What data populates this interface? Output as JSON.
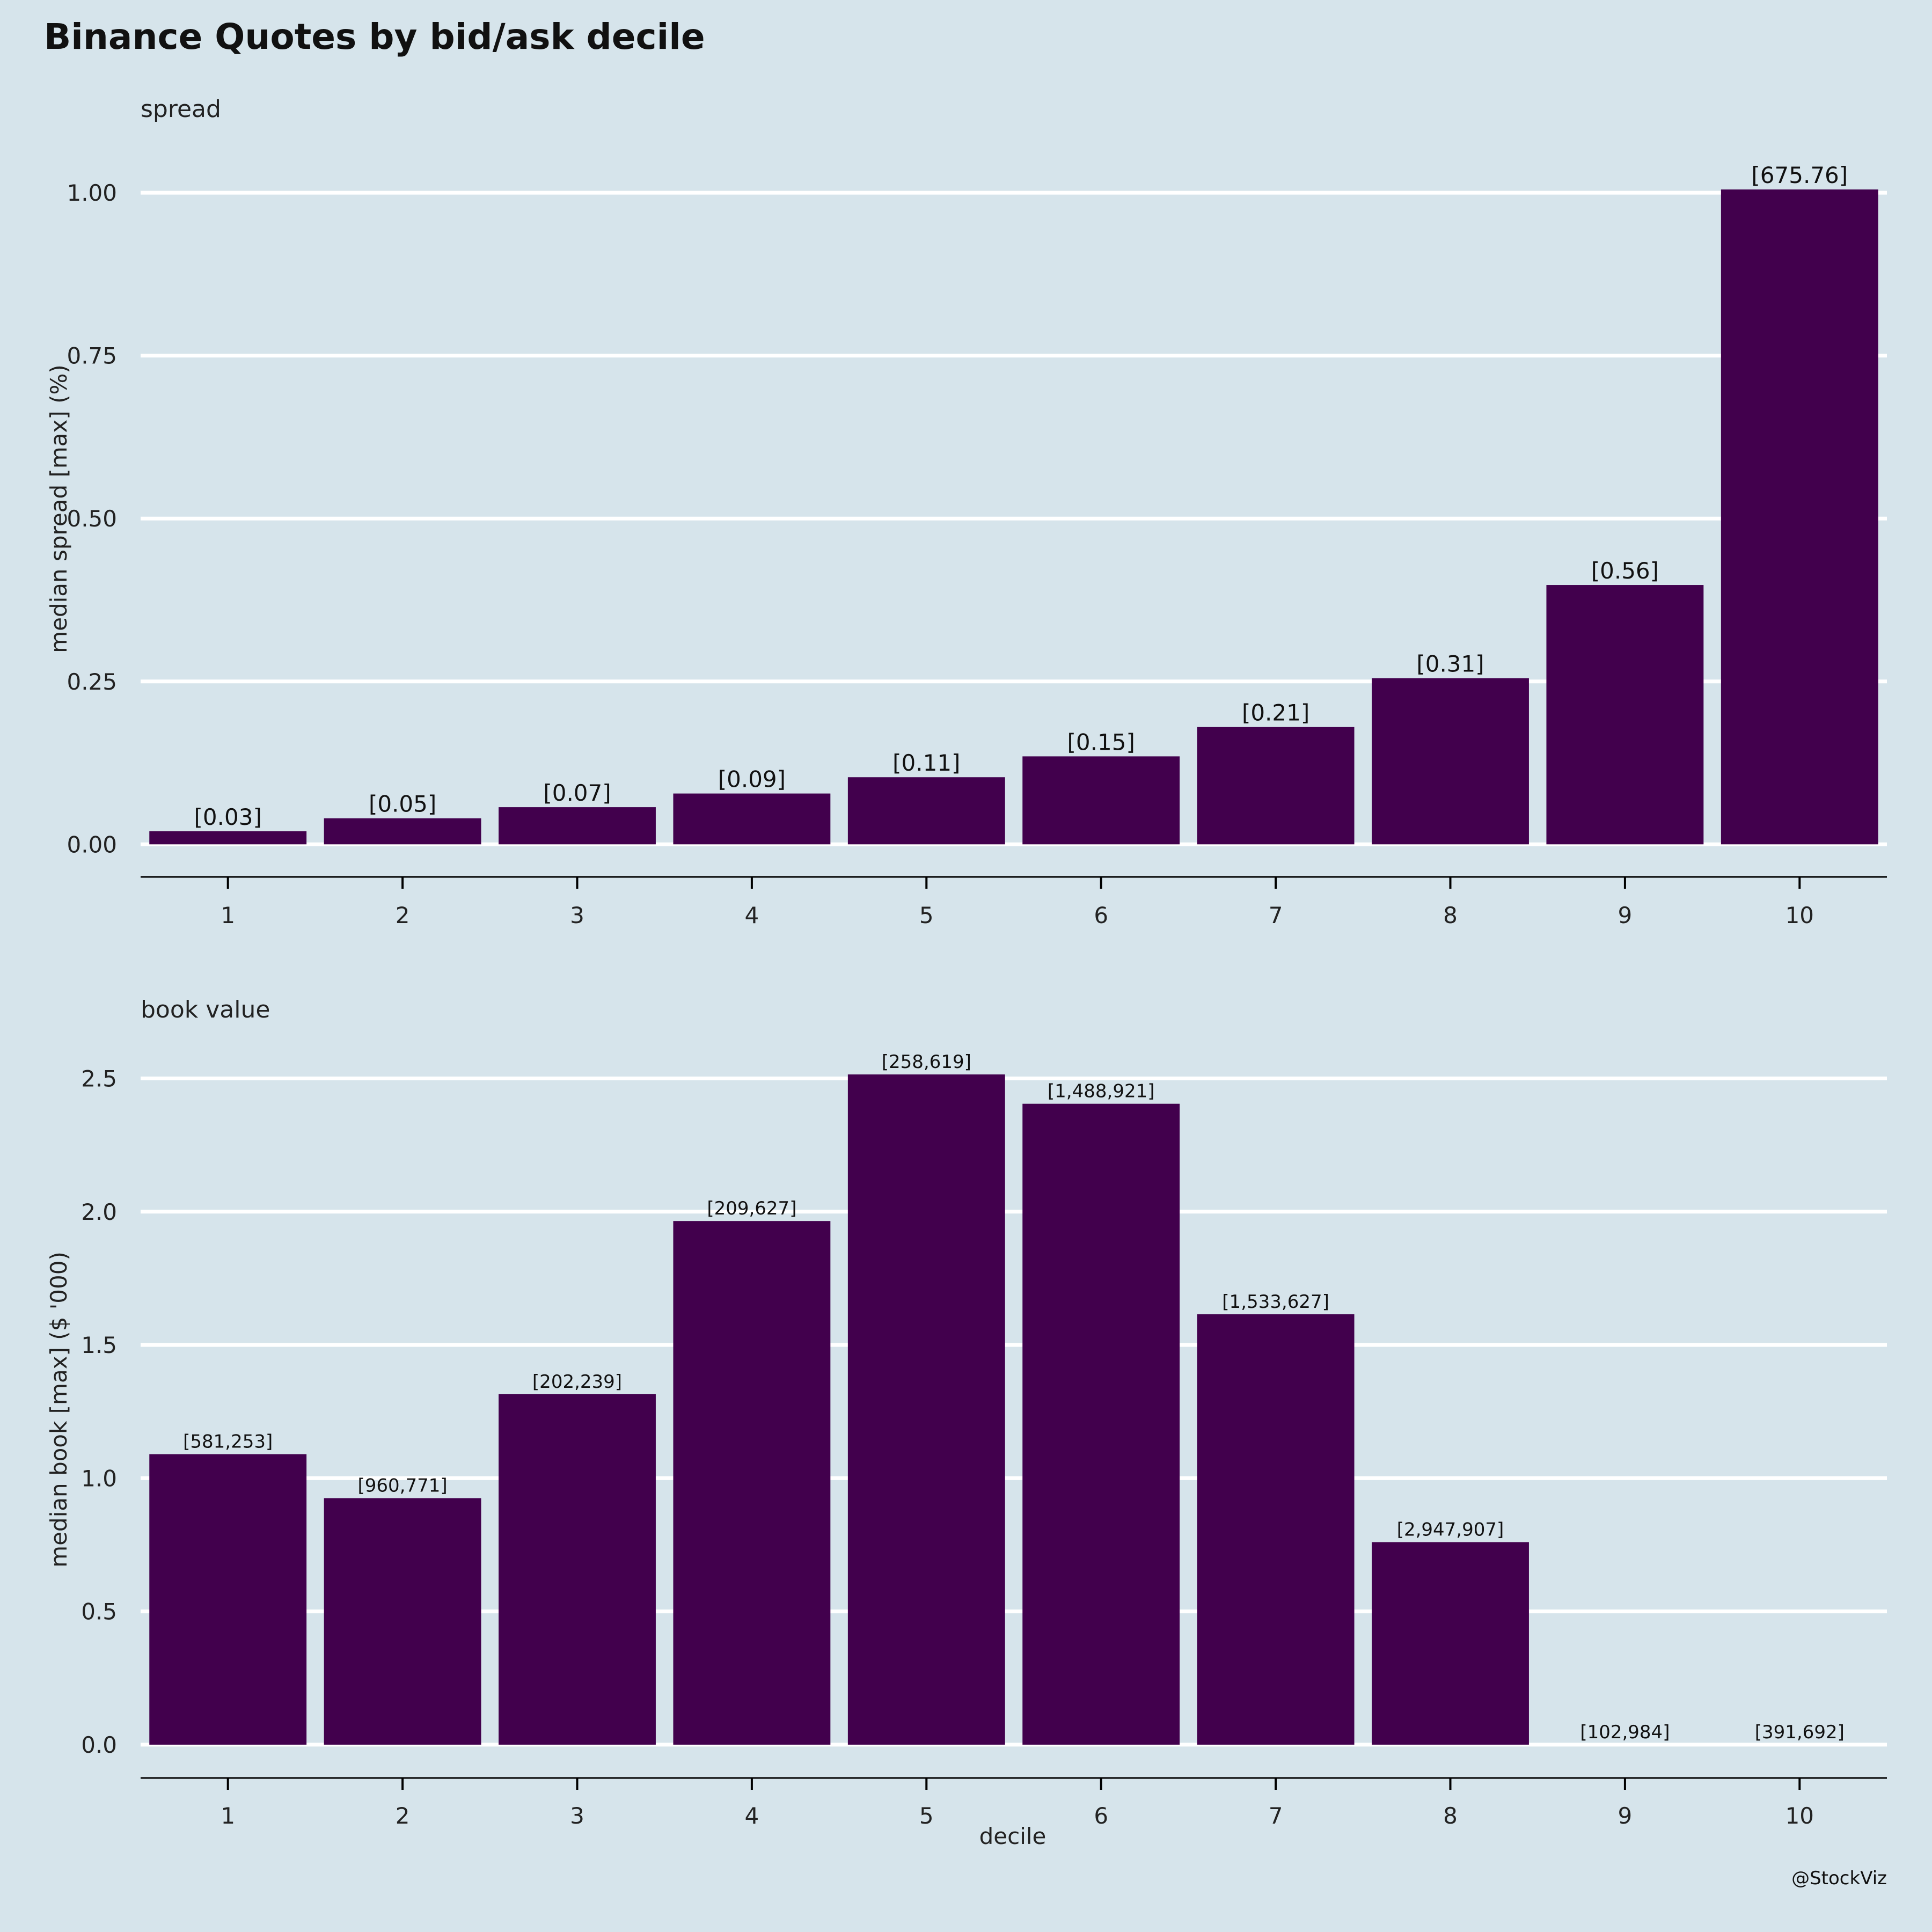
{
  "title": "Binance Quotes by bid/ask decile",
  "credit": "@StockViz",
  "colors": {
    "background": "#d6e4eb",
    "bar": "#42004d",
    "grid": "#ffffff",
    "axis": "#000000"
  },
  "chart_data": [
    {
      "type": "bar",
      "panel_title": "spread",
      "xlabel": "",
      "ylabel": "median spread [max] (%)",
      "categories": [
        "1",
        "2",
        "3",
        "4",
        "5",
        "6",
        "7",
        "8",
        "9",
        "10"
      ],
      "values": [
        0.02,
        0.04,
        0.057,
        0.078,
        0.103,
        0.135,
        0.18,
        0.255,
        0.398,
        1.005
      ],
      "labels": [
        "[0.03]",
        "[0.05]",
        "[0.07]",
        "[0.09]",
        "[0.11]",
        "[0.15]",
        "[0.21]",
        "[0.31]",
        "[0.56]",
        "[675.76]"
      ],
      "ylim": [
        -0.05,
        1.08
      ],
      "yticks": [
        0,
        0.25,
        0.5,
        0.75,
        1.0
      ],
      "ytick_labels": [
        "0.00",
        "0.25",
        "0.50",
        "0.75",
        "1.00"
      ],
      "grid": true
    },
    {
      "type": "bar",
      "panel_title": "book value",
      "xlabel": "decile",
      "ylabel": "median book [max] ($ '000)",
      "categories": [
        "1",
        "2",
        "3",
        "4",
        "5",
        "6",
        "7",
        "8",
        "9",
        "10"
      ],
      "values": [
        1.09,
        0.925,
        1.315,
        1.965,
        2.515,
        2.405,
        1.615,
        0.76,
        0,
        0
      ],
      "labels": [
        "[581,253]",
        "[960,771]",
        "[202,239]",
        "[209,627]",
        "[258,619]",
        "[1,488,921]",
        "[1,533,627]",
        "[2,947,907]",
        "[102,984]",
        "[391,692]"
      ],
      "ylim": [
        -0.125,
        2.64
      ],
      "yticks": [
        0,
        0.5,
        1.0,
        1.5,
        2.0,
        2.5
      ],
      "ytick_labels": [
        "0.0",
        "0.5",
        "1.0",
        "1.5",
        "2.0",
        "2.5"
      ],
      "grid": true
    }
  ]
}
